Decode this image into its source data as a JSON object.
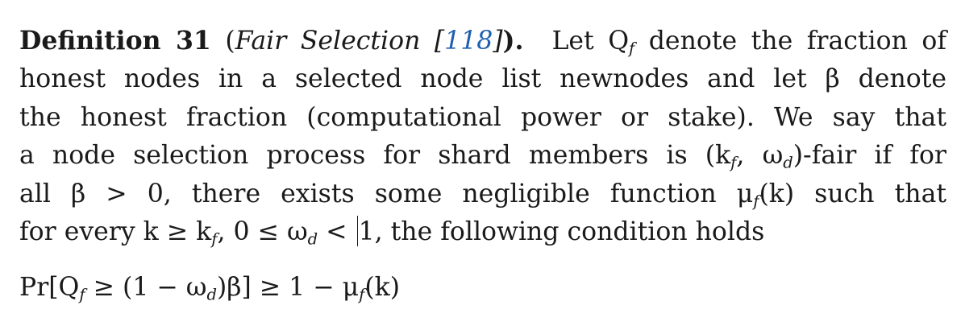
{
  "definition": {
    "label": "Definition 31",
    "paren_open": " (",
    "title": "Fair Selection [",
    "ref": "118",
    "title_close": "]",
    "paren_close": ").",
    "lines": [
      "Let Q",
      "honest nodes in a selected node list newnodes and let β denote",
      "the honest fraction (computational power or stake). We say that",
      "a node selection process for shard members is (k",
      "all β > 0, there exists some negligible function μ",
      "for every k ≥ k"
    ],
    "line1_rest": " denote the fraction of",
    "line4_rest_a": ", ω",
    "line4_rest_b": ")-fair if for",
    "line5_rest": "(k) such that",
    "line6_rest_a": ", 0 ≤ ω",
    "line6_rest_b": " < ",
    "line6_rest_c": "1, the following condition holds",
    "sub_f": "f",
    "sub_d": "d"
  },
  "formula": {
    "text_a": "Pr[Q",
    "text_b": " ≥ (1 − ω",
    "text_c": ")β] ≥ 1 − μ",
    "text_d": "(k)"
  }
}
